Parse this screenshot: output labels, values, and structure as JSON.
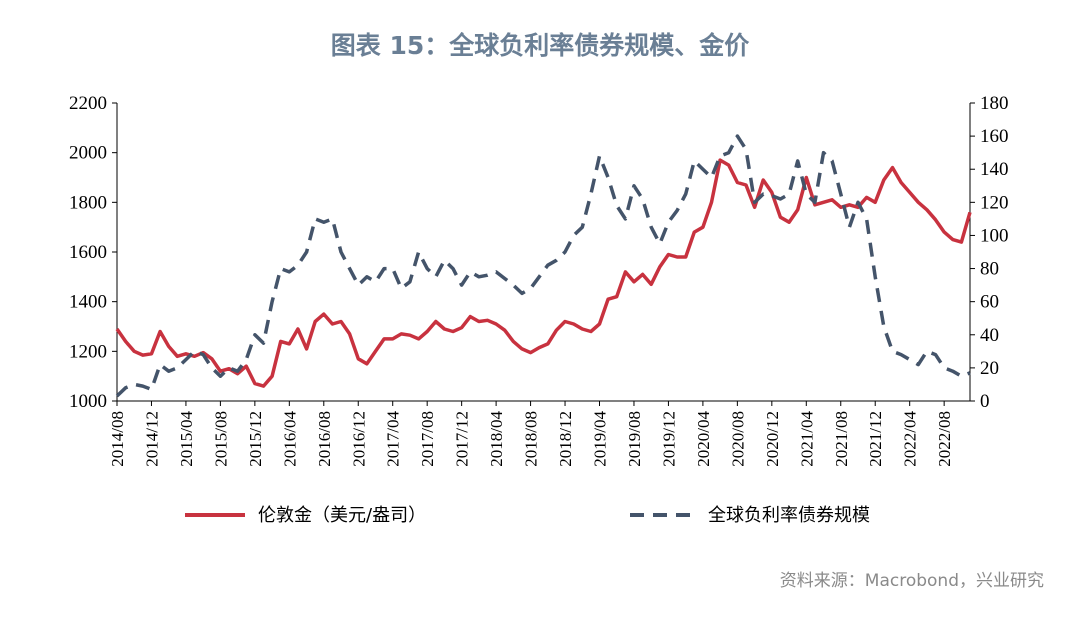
{
  "title": "图表 15：全球负利率债券规模、金价",
  "source": "资料来源：Macrobond，兴业研究",
  "colors": {
    "gold": "#c8323f",
    "negbond": "#44546a",
    "title": "#6a7f95",
    "source": "#8a8a8a"
  },
  "chart_data": {
    "type": "line",
    "x_tick_labels": [
      "2014/08",
      "2014/12",
      "2015/04",
      "2015/08",
      "2015/12",
      "2016/04",
      "2016/08",
      "2016/12",
      "2017/04",
      "2017/08",
      "2017/12",
      "2018/04",
      "2018/08",
      "2018/12",
      "2019/04",
      "2019/08",
      "2019/12",
      "2020/04",
      "2020/08",
      "2020/12",
      "2021/04",
      "2021/08",
      "2021/12",
      "2022/04",
      "2022/08"
    ],
    "y_left": {
      "min": 1000,
      "max": 2200,
      "ticks": [
        1000,
        1200,
        1400,
        1600,
        1800,
        2000,
        2200
      ]
    },
    "y_right": {
      "min": 0,
      "max": 180,
      "ticks": [
        0,
        20,
        40,
        60,
        80,
        100,
        120,
        140,
        160,
        180
      ]
    },
    "legend_position": "bottom",
    "series": [
      {
        "name": "伦敦金（美元/盎司）",
        "axis": "left",
        "style": "solid",
        "values": [
          1290,
          1240,
          1200,
          1185,
          1190,
          1280,
          1220,
          1180,
          1190,
          1180,
          1195,
          1170,
          1120,
          1130,
          1110,
          1140,
          1070,
          1060,
          1100,
          1240,
          1230,
          1290,
          1210,
          1320,
          1350,
          1310,
          1320,
          1270,
          1170,
          1150,
          1200,
          1250,
          1250,
          1270,
          1265,
          1250,
          1280,
          1320,
          1290,
          1280,
          1295,
          1340,
          1320,
          1325,
          1310,
          1285,
          1240,
          1210,
          1195,
          1215,
          1230,
          1285,
          1320,
          1310,
          1290,
          1280,
          1310,
          1410,
          1420,
          1520,
          1480,
          1510,
          1470,
          1540,
          1590,
          1580,
          1580,
          1680,
          1700,
          1800,
          1970,
          1950,
          1880,
          1870,
          1780,
          1890,
          1840,
          1740,
          1720,
          1770,
          1900,
          1790,
          1800,
          1810,
          1780,
          1790,
          1780,
          1820,
          1800,
          1890,
          1940,
          1880,
          1840,
          1800,
          1770,
          1730,
          1680,
          1650,
          1640,
          1760
        ]
      },
      {
        "name": "全球负利率债券规模",
        "axis": "right",
        "style": "dashed",
        "values": [
          3,
          8,
          10,
          9,
          7,
          22,
          18,
          20,
          25,
          30,
          28,
          20,
          15,
          20,
          18,
          25,
          40,
          35,
          60,
          80,
          78,
          82,
          90,
          110,
          108,
          110,
          90,
          80,
          70,
          75,
          72,
          80,
          80,
          68,
          72,
          90,
          80,
          75,
          85,
          80,
          70,
          78,
          75,
          76,
          78,
          74,
          70,
          65,
          68,
          75,
          82,
          85,
          90,
          100,
          105,
          125,
          148,
          135,
          118,
          110,
          130,
          122,
          105,
          95,
          108,
          115,
          125,
          145,
          140,
          135,
          148,
          150,
          160,
          152,
          120,
          125,
          124,
          122,
          125,
          145,
          125,
          120,
          150,
          145,
          125,
          105,
          120,
          110,
          75,
          45,
          30,
          28,
          25,
          22,
          30,
          28,
          20,
          18,
          15,
          17
        ]
      }
    ]
  }
}
